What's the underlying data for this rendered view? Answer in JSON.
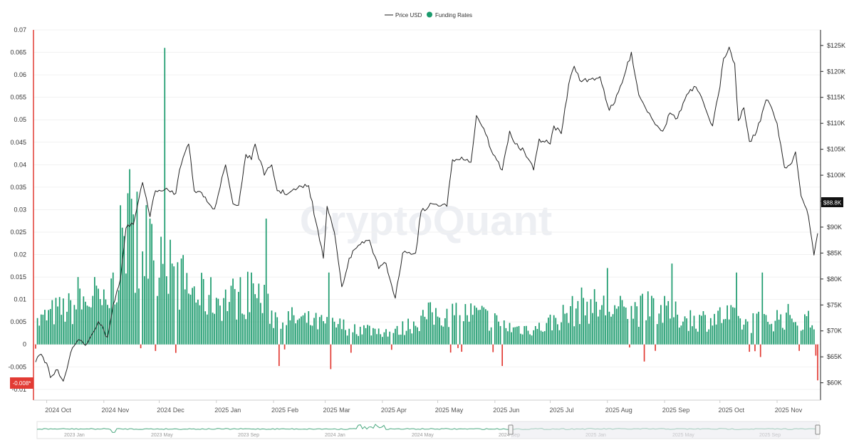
{
  "chart_data": {
    "type": "bar",
    "legend": {
      "position": "top-center",
      "items": [
        {
          "label": "Price USD",
          "color": "#333333",
          "marker": "line"
        },
        {
          "label": "Funding Rates",
          "color": "#1a9a6c",
          "marker": "dot"
        }
      ]
    },
    "watermark": "CryptoQuant",
    "colors": {
      "positive": "#1a9a6c",
      "negative": "#e23b34",
      "price": "#222222",
      "left_axis": "#e23b34"
    },
    "x_axis": {
      "ticks": [
        "2024 Oct",
        "2024 Nov",
        "2024 Dec",
        "2025 Jan",
        "2025 Feb",
        "2025 Mar",
        "2025 Apr",
        "2025 May",
        "2025 Jun",
        "2025 Jul",
        "2025 Aug",
        "2025 Sep",
        "2025 Oct",
        "2025 Nov"
      ],
      "range": [
        "2024-09-25",
        "2025-11-23"
      ]
    },
    "y_left": {
      "min": -0.0105,
      "max": 0.07,
      "ticks": [
        "0.07",
        "0.065",
        "0.06",
        "0.055",
        "0.05",
        "0.045",
        "0.04",
        "0.035",
        "0.03",
        "0.025",
        "0.02",
        "0.015",
        "0.01",
        "0.005",
        "0",
        "-0.005",
        "-0.01"
      ],
      "tick_values": [
        0.07,
        0.065,
        0.06,
        0.055,
        0.05,
        0.045,
        0.04,
        0.035,
        0.03,
        0.025,
        0.02,
        0.015,
        0.01,
        0.005,
        0,
        -0.005,
        -0.01
      ]
    },
    "y_right": {
      "min": 58300,
      "max": 128000,
      "ticks": [
        "$125K",
        "$120K",
        "$115K",
        "$110K",
        "$105K",
        "$100K",
        "$95K",
        "$90K",
        "$85K",
        "$80K",
        "$75K",
        "$70K",
        "$65K",
        "$60K"
      ],
      "tick_values": [
        125000,
        120000,
        115000,
        110000,
        105000,
        100000,
        95000,
        90000,
        85000,
        80000,
        75000,
        70000,
        65000,
        60000
      ]
    },
    "current_price_label": "$88.8K",
    "current_funding_label": "-0.008*",
    "series": [
      {
        "name": "Funding Rates",
        "axis": "left",
        "anchors": [
          [
            "2024-09-25",
            0.005
          ],
          [
            "2024-10-05",
            0.008
          ],
          [
            "2024-10-15",
            0.009
          ],
          [
            "2024-10-25",
            0.011
          ],
          [
            "2024-11-03",
            0.009
          ],
          [
            "2024-11-08",
            0.018
          ],
          [
            "2024-11-12",
            0.028
          ],
          [
            "2024-11-20",
            0.024
          ],
          [
            "2024-11-28",
            0.021
          ],
          [
            "2024-12-03",
            0.026
          ],
          [
            "2024-12-12",
            0.016
          ],
          [
            "2024-12-22",
            0.012
          ],
          [
            "2025-01-05",
            0.011
          ],
          [
            "2025-01-15",
            0.012
          ],
          [
            "2025-01-22",
            0.013
          ],
          [
            "2025-02-01",
            0.007
          ],
          [
            "2025-02-15",
            0.006
          ],
          [
            "2025-03-01",
            0.005
          ],
          [
            "2025-03-20",
            0.004
          ],
          [
            "2025-04-08",
            0.003
          ],
          [
            "2025-04-25",
            0.007
          ],
          [
            "2025-05-10",
            0.008
          ],
          [
            "2025-05-25",
            0.007
          ],
          [
            "2025-06-10",
            0.004
          ],
          [
            "2025-06-25",
            0.004
          ],
          [
            "2025-07-08",
            0.007
          ],
          [
            "2025-07-20",
            0.01
          ],
          [
            "2025-07-30",
            0.009
          ],
          [
            "2025-08-12",
            0.008
          ],
          [
            "2025-08-25",
            0.009
          ],
          [
            "2025-09-08",
            0.007
          ],
          [
            "2025-09-20",
            0.006
          ],
          [
            "2025-10-05",
            0.007
          ],
          [
            "2025-10-15",
            0.005
          ],
          [
            "2025-10-25",
            0.006
          ],
          [
            "2025-11-10",
            0.007
          ],
          [
            "2025-11-23",
            0.005
          ]
        ],
        "spikes": [
          [
            "2024-10-18",
            0.015
          ],
          [
            "2024-10-27",
            0.015
          ],
          [
            "2024-11-06",
            0.016
          ],
          [
            "2024-11-15",
            0.039
          ],
          [
            "2024-11-19",
            0.034
          ],
          [
            "2024-11-24",
            0.031
          ],
          [
            "2024-11-26",
            0.028
          ],
          [
            "2024-12-04",
            0.066
          ],
          [
            "2024-12-08",
            0.018
          ],
          [
            "2025-01-20",
            0.016
          ],
          [
            "2025-01-28",
            0.028
          ],
          [
            "2025-02-04",
            -0.0048
          ],
          [
            "2025-03-03",
            0.016
          ],
          [
            "2025-03-04",
            -0.0055
          ],
          [
            "2025-04-06",
            -0.0012
          ],
          [
            "2025-06-05",
            -0.0048
          ],
          [
            "2025-08-01",
            0.017
          ],
          [
            "2025-08-21",
            -0.0038
          ],
          [
            "2025-09-05",
            0.018
          ],
          [
            "2025-10-10",
            0.016
          ],
          [
            "2025-10-24",
            0.016
          ],
          [
            "2025-10-23",
            -0.0028
          ],
          [
            "2025-11-22",
            -0.0025
          ],
          [
            "2025-11-23",
            -0.008
          ]
        ]
      },
      {
        "name": "Price USD",
        "axis": "right",
        "points": [
          [
            "2024-09-25",
            64000
          ],
          [
            "2024-09-28",
            65500
          ],
          [
            "2024-10-01",
            63800
          ],
          [
            "2024-10-03",
            61000
          ],
          [
            "2024-10-07",
            62500
          ],
          [
            "2024-10-10",
            60300
          ],
          [
            "2024-10-14",
            65800
          ],
          [
            "2024-10-18",
            68300
          ],
          [
            "2024-10-22",
            67200
          ],
          [
            "2024-10-29",
            71800
          ],
          [
            "2024-11-03",
            68800
          ],
          [
            "2024-11-06",
            75000
          ],
          [
            "2024-11-10",
            80000
          ],
          [
            "2024-11-13",
            89800
          ],
          [
            "2024-11-17",
            90500
          ],
          [
            "2024-11-22",
            98600
          ],
          [
            "2024-11-26",
            92000
          ],
          [
            "2024-11-29",
            97000
          ],
          [
            "2024-12-05",
            97500
          ],
          [
            "2024-12-10",
            96500
          ],
          [
            "2024-12-12",
            101000
          ],
          [
            "2024-12-17",
            106000
          ],
          [
            "2024-12-20",
            97000
          ],
          [
            "2024-12-26",
            95800
          ],
          [
            "2024-12-31",
            93500
          ],
          [
            "2025-01-06",
            102000
          ],
          [
            "2025-01-10",
            94500
          ],
          [
            "2025-01-13",
            94200
          ],
          [
            "2025-01-17",
            104000
          ],
          [
            "2025-01-20",
            103000
          ],
          [
            "2025-01-22",
            106000
          ],
          [
            "2025-01-27",
            100000
          ],
          [
            "2025-01-31",
            102000
          ],
          [
            "2025-02-03",
            97000
          ],
          [
            "2025-02-09",
            96500
          ],
          [
            "2025-02-14",
            97500
          ],
          [
            "2025-02-20",
            98000
          ],
          [
            "2025-02-24",
            91000
          ],
          [
            "2025-02-28",
            84000
          ],
          [
            "2025-03-02",
            94000
          ],
          [
            "2025-03-06",
            89000
          ],
          [
            "2025-03-10",
            78500
          ],
          [
            "2025-03-14",
            84000
          ],
          [
            "2025-03-19",
            86500
          ],
          [
            "2025-03-25",
            87500
          ],
          [
            "2025-03-30",
            82000
          ],
          [
            "2025-04-03",
            83000
          ],
          [
            "2025-04-08",
            76300
          ],
          [
            "2025-04-12",
            85000
          ],
          [
            "2025-04-19",
            85000
          ],
          [
            "2025-04-22",
            93000
          ],
          [
            "2025-04-28",
            94500
          ],
          [
            "2025-05-06",
            94000
          ],
          [
            "2025-05-09",
            103000
          ],
          [
            "2025-05-14",
            103500
          ],
          [
            "2025-05-19",
            102500
          ],
          [
            "2025-05-22",
            111500
          ],
          [
            "2025-05-26",
            109000
          ],
          [
            "2025-05-31",
            104000
          ],
          [
            "2025-06-05",
            101000
          ],
          [
            "2025-06-09",
            108500
          ],
          [
            "2025-06-12",
            106000
          ],
          [
            "2025-06-17",
            104500
          ],
          [
            "2025-06-22",
            101000
          ],
          [
            "2025-06-25",
            107000
          ],
          [
            "2025-07-01",
            106000
          ],
          [
            "2025-07-03",
            109500
          ],
          [
            "2025-07-07",
            108000
          ],
          [
            "2025-07-11",
            117500
          ],
          [
            "2025-07-14",
            121000
          ],
          [
            "2025-07-18",
            118000
          ],
          [
            "2025-07-23",
            118500
          ],
          [
            "2025-07-28",
            119000
          ],
          [
            "2025-08-02",
            112500
          ],
          [
            "2025-08-05",
            114000
          ],
          [
            "2025-08-10",
            119000
          ],
          [
            "2025-08-14",
            123700
          ],
          [
            "2025-08-18",
            115500
          ],
          [
            "2025-08-25",
            111000
          ],
          [
            "2025-08-31",
            108500
          ],
          [
            "2025-09-04",
            112000
          ],
          [
            "2025-09-08",
            111000
          ],
          [
            "2025-09-13",
            115500
          ],
          [
            "2025-09-18",
            117000
          ],
          [
            "2025-09-23",
            113000
          ],
          [
            "2025-09-27",
            109500
          ],
          [
            "2025-10-01",
            117000
          ],
          [
            "2025-10-03",
            122500
          ],
          [
            "2025-10-06",
            124700
          ],
          [
            "2025-10-09",
            121500
          ],
          [
            "2025-10-11",
            110500
          ],
          [
            "2025-10-14",
            113000
          ],
          [
            "2025-10-17",
            106500
          ],
          [
            "2025-10-21",
            108500
          ],
          [
            "2025-10-26",
            114500
          ],
          [
            "2025-10-29",
            113000
          ],
          [
            "2025-11-01",
            110000
          ],
          [
            "2025-11-05",
            101500
          ],
          [
            "2025-11-08",
            102000
          ],
          [
            "2025-11-11",
            104500
          ],
          [
            "2025-11-14",
            96000
          ],
          [
            "2025-11-18",
            92000
          ],
          [
            "2025-11-21",
            84600
          ],
          [
            "2025-11-23",
            88800
          ]
        ]
      }
    ]
  },
  "navigator": {
    "labels": [
      "2023 Jan",
      "2023 May",
      "2023 Sep",
      "2024 Jan",
      "2024 May",
      "2024 Sep",
      "2025 Jan",
      "2025 May",
      "2025 Sep"
    ]
  }
}
